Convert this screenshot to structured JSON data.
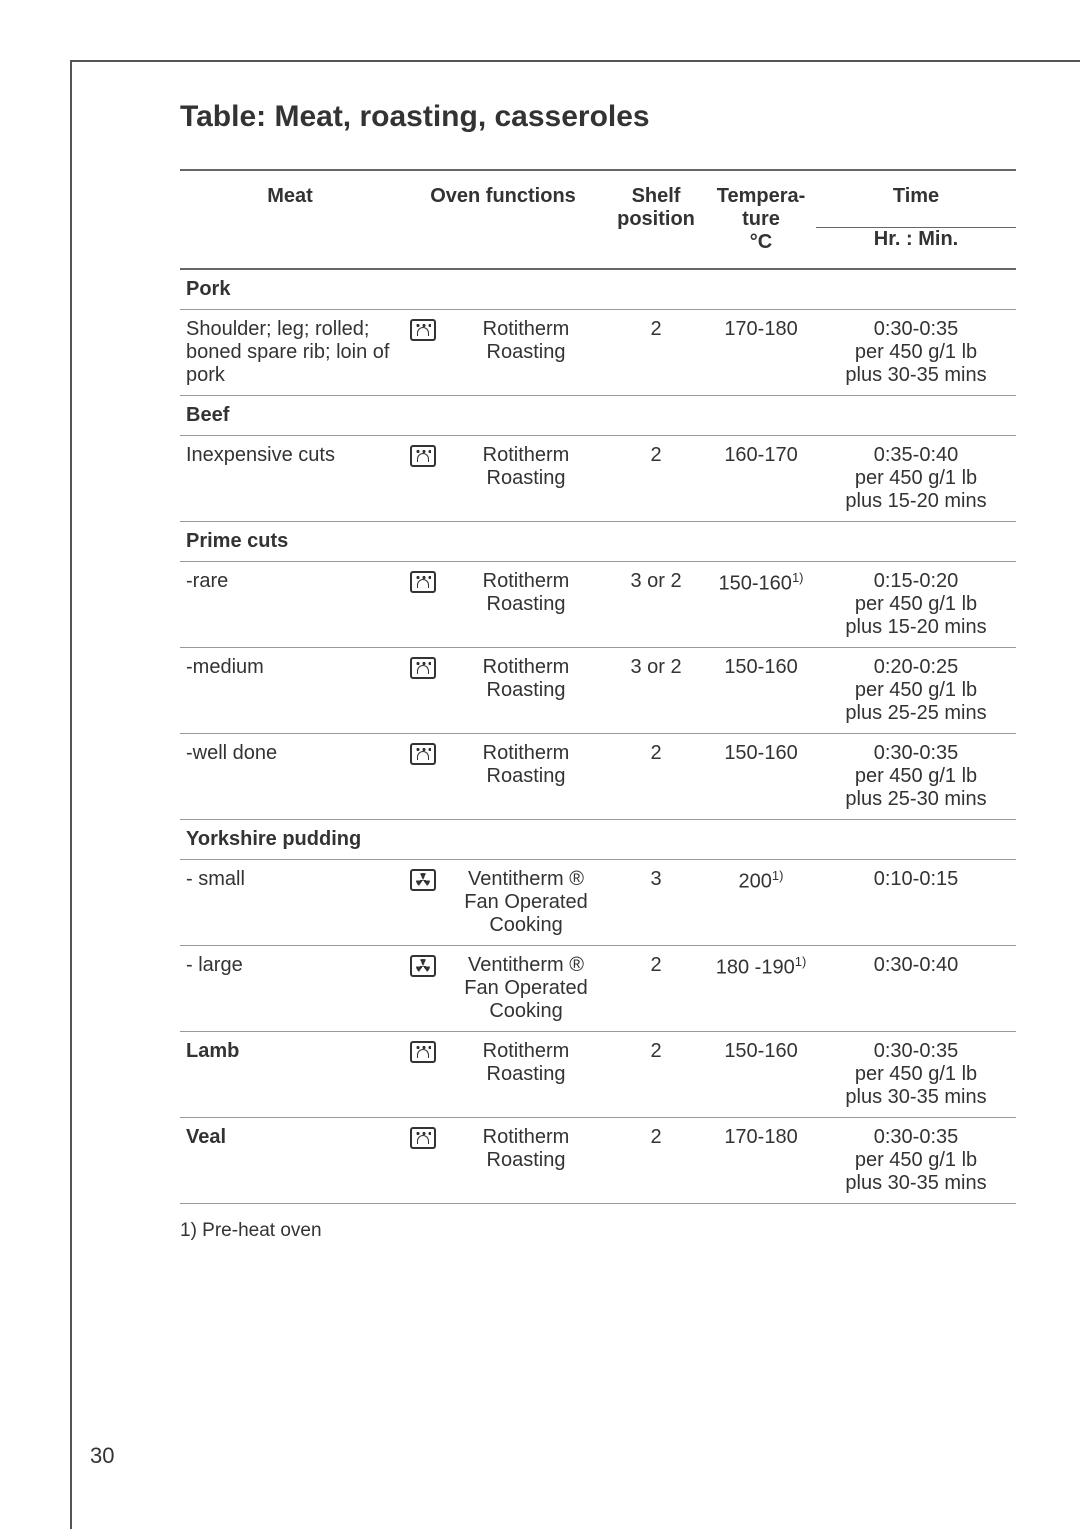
{
  "page_number": "30",
  "title": "Table: Meat, roasting, casseroles",
  "header": {
    "meat": "Meat",
    "oven_functions": "Oven functions",
    "shelf": "Shelf position",
    "temperature": "Tempera-\nture\n°C",
    "time": "Time",
    "time_sub": "Hr. : Min."
  },
  "sections": [
    {
      "label": "Pork",
      "rows": [
        {
          "meat": "Shoulder; leg; rolled; boned spare rib; loin of pork",
          "meat_bold": false,
          "icon": "rotitherm",
          "function": "Rotitherm Roasting",
          "shelf": "2",
          "temperature": "170-180",
          "temp_note": "",
          "time": "0:30-0:35\nper 450 g/1 lb\nplus 30-35 mins"
        }
      ]
    },
    {
      "label": "Beef",
      "rows": [
        {
          "meat": "Inexpensive cuts",
          "meat_bold": false,
          "icon": "rotitherm",
          "function": "Rotitherm Roasting",
          "shelf": "2",
          "temperature": "160-170",
          "temp_note": "",
          "time": "0:35-0:40\nper 450 g/1 lb\nplus 15-20 mins"
        }
      ]
    },
    {
      "label": "Prime cuts",
      "rows": [
        {
          "meat": "-rare",
          "meat_bold": false,
          "icon": "rotitherm",
          "function": "Rotitherm Roasting",
          "shelf": "3 or 2",
          "temperature": "150-160",
          "temp_note": "1)",
          "time": "0:15-0:20\nper 450 g/1 lb\nplus 15-20 mins"
        },
        {
          "meat": "-medium",
          "meat_bold": false,
          "icon": "rotitherm",
          "function": "Rotitherm Roasting",
          "shelf": "3 or 2",
          "temperature": "150-160",
          "temp_note": "",
          "time": "0:20-0:25\nper 450 g/1 lb\nplus 25-25 mins"
        },
        {
          "meat": "-well done",
          "meat_bold": false,
          "icon": "rotitherm",
          "function": "Rotitherm Roasting",
          "shelf": "2",
          "temperature": "150-160",
          "temp_note": "",
          "time": "0:30-0:35\nper 450 g/1 lb\nplus 25-30 mins"
        }
      ]
    },
    {
      "label": "Yorkshire pudding",
      "rows": [
        {
          "meat": "- small",
          "meat_bold": false,
          "icon": "ventitherm",
          "function": "Ventitherm ® Fan Operated Cooking",
          "shelf": "3",
          "temperature": "200",
          "temp_note": "1)",
          "time": "0:10-0:15"
        },
        {
          "meat": "- large",
          "meat_bold": false,
          "icon": "ventitherm",
          "function": "Ventitherm ® Fan Operated Cooking",
          "shelf": "2",
          "temperature": "180 -190",
          "temp_note": "1)",
          "time": "0:30-0:40"
        },
        {
          "meat": "Lamb",
          "meat_bold": true,
          "icon": "rotitherm",
          "function": "Rotitherm Roasting",
          "shelf": "2",
          "temperature": "150-160",
          "temp_note": "",
          "time": "0:30-0:35\nper 450 g/1 lb\nplus 30-35 mins"
        },
        {
          "meat": "Veal",
          "meat_bold": true,
          "icon": "rotitherm",
          "function": "Rotitherm Roasting",
          "shelf": "2",
          "temperature": "170-180",
          "temp_note": "",
          "time": "0:30-0:35\nper 450 g/1 lb\nplus 30-35 mins"
        }
      ]
    }
  ],
  "footnote": "1) Pre-heat oven"
}
